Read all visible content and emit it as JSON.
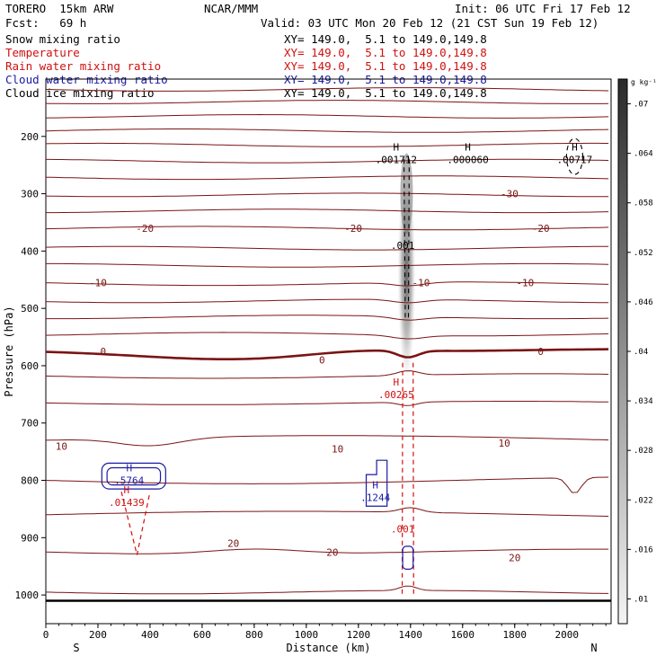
{
  "header": {
    "model": "TORERO  15km ARW",
    "center": "NCAR/MMM",
    "init": "Init: 06 UTC Fri 17 Feb 12",
    "fcst": "Fcst:   69 h",
    "valid": "Valid: 03 UTC Mon 20 Feb 12 (21 CST Sun 19 Feb 12)"
  },
  "fields": [
    {
      "name": "Snow mixing ratio",
      "xy": "XY= 149.0,  5.1 to 149.0,149.8",
      "color": "#000000"
    },
    {
      "name": "Temperature",
      "xy": "XY= 149.0,  5.1 to 149.0,149.8",
      "color": "#d01010"
    },
    {
      "name": "Rain water mixing ratio",
      "xy": "XY= 149.0,  5.1 to 149.0,149.8",
      "color": "#d01010"
    },
    {
      "name": "Cloud water mixing ratio",
      "xy": "XY= 149.0,  5.1 to 149.0,149.8",
      "color": "#1a1aa6"
    },
    {
      "name": "Cloud ice mixing ratio",
      "xy": "XY= 149.0,  5.1 to 149.0,149.8",
      "color": "#000000"
    }
  ],
  "chart_data": {
    "type": "line",
    "xlabel": "Distance (km)",
    "ylabel": "Pressure (hPa)",
    "xlim": [
      0,
      2170
    ],
    "ylim": [
      1050,
      100
    ],
    "x_ticks": [
      0,
      200,
      400,
      600,
      800,
      1000,
      1200,
      1400,
      1600,
      1800,
      2000
    ],
    "y_ticks": [
      200,
      300,
      400,
      500,
      600,
      700,
      800,
      900,
      1000
    ],
    "x_end_labels": {
      "left": "S",
      "right": "N"
    },
    "temperature_labels": [
      {
        "x": 380,
        "p": 360,
        "text": "-20"
      },
      {
        "x": 1180,
        "p": 360,
        "text": "-20"
      },
      {
        "x": 1900,
        "p": 360,
        "text": "-20"
      },
      {
        "x": 1780,
        "p": 300,
        "text": "-30"
      },
      {
        "x": 200,
        "p": 455,
        "text": "-10"
      },
      {
        "x": 1440,
        "p": 455,
        "text": "-10"
      },
      {
        "x": 1840,
        "p": 455,
        "text": "-10"
      },
      {
        "x": 220,
        "p": 575,
        "text": "0"
      },
      {
        "x": 1060,
        "p": 590,
        "text": "0"
      },
      {
        "x": 1900,
        "p": 575,
        "text": "0"
      },
      {
        "x": 60,
        "p": 740,
        "text": "10"
      },
      {
        "x": 1120,
        "p": 745,
        "text": "10"
      },
      {
        "x": 1760,
        "p": 735,
        "text": "10"
      },
      {
        "x": 720,
        "p": 910,
        "text": "20"
      },
      {
        "x": 1100,
        "p": 925,
        "text": "20"
      },
      {
        "x": 1800,
        "p": 935,
        "text": "20"
      }
    ],
    "extrema": [
      {
        "x": 1345,
        "p": 240,
        "h": "H",
        "value": ".001712",
        "color": "#000000"
      },
      {
        "x": 1620,
        "p": 240,
        "h": "H",
        "value": ".000060",
        "color": "#000000"
      },
      {
        "x": 2030,
        "p": 240,
        "h": "H",
        "value": ".00717",
        "color": "#000000"
      },
      {
        "x": 1370,
        "p": 390,
        "h": "",
        "value": ".001",
        "color": "#000000"
      },
      {
        "x": 1345,
        "p": 650,
        "h": "H",
        "value": ".00265",
        "color": "#d01010"
      },
      {
        "x": 320,
        "p": 800,
        "h": "H",
        "value": ".5764",
        "color": "#1a1aa6"
      },
      {
        "x": 310,
        "p": 838,
        "h": "H",
        "value": ".01439",
        "color": "#d01010"
      },
      {
        "x": 1265,
        "p": 830,
        "h": "H",
        "value": ".1244",
        "color": "#1a1aa6"
      },
      {
        "x": 1370,
        "p": 885,
        "h": "",
        "value": ".001",
        "color": "#d01010"
      }
    ],
    "colorbar": {
      "unit": "g kg⁻¹",
      "labels": [
        ".07",
        ".064",
        ".058",
        ".052",
        ".046",
        ".04",
        ".034",
        ".028",
        ".022",
        ".016",
        ".01"
      ]
    }
  }
}
